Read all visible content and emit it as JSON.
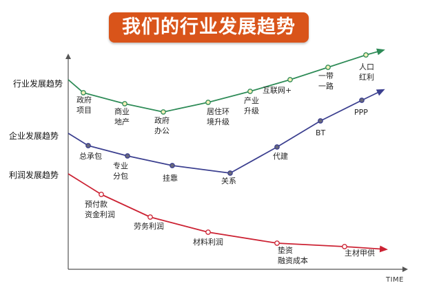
{
  "title": "我们的行业发展趋势",
  "axis": {
    "x_label": "TIME"
  },
  "colors": {
    "title_bg": "#d9541a",
    "industry": "#2e8b57",
    "enterprise": "#3b3f8f",
    "profit": "#cc2233",
    "axis": "#555555"
  },
  "rows": {
    "industry": "行业发展趋势",
    "enterprise": "企业发展趋势",
    "profit": "利润发展趋势"
  },
  "industry_stages": [
    {
      "line1": "政府",
      "line2": "项目"
    },
    {
      "line1": "商业",
      "line2": "地产"
    },
    {
      "line1": "政府",
      "line2": "办公"
    },
    {
      "line1": "居住环",
      "line2": "境升级"
    },
    {
      "line1": "产业",
      "line2": "升级"
    },
    {
      "line1": "互联网+",
      "line2": ""
    },
    {
      "line1": "一带",
      "line2": "一路"
    },
    {
      "line1": "人口",
      "line2": "红利"
    }
  ],
  "enterprise_stages": [
    {
      "line1": "总承包",
      "line2": ""
    },
    {
      "line1": "专业",
      "line2": "分包"
    },
    {
      "line1": "挂靠",
      "line2": ""
    },
    {
      "line1": "关系",
      "line2": ""
    },
    {
      "line1": "代建",
      "line2": ""
    },
    {
      "line1": "BT",
      "line2": ""
    },
    {
      "line1": "PPP",
      "line2": ""
    }
  ],
  "profit_stages": [
    {
      "line1": "预付款",
      "line2": "资金利润"
    },
    {
      "line1": "劳务利润",
      "line2": ""
    },
    {
      "line1": "材料利润",
      "line2": ""
    },
    {
      "line1": "垫资",
      "line2": "融资成本"
    },
    {
      "line1": "主材甲供",
      "line2": ""
    }
  ]
}
